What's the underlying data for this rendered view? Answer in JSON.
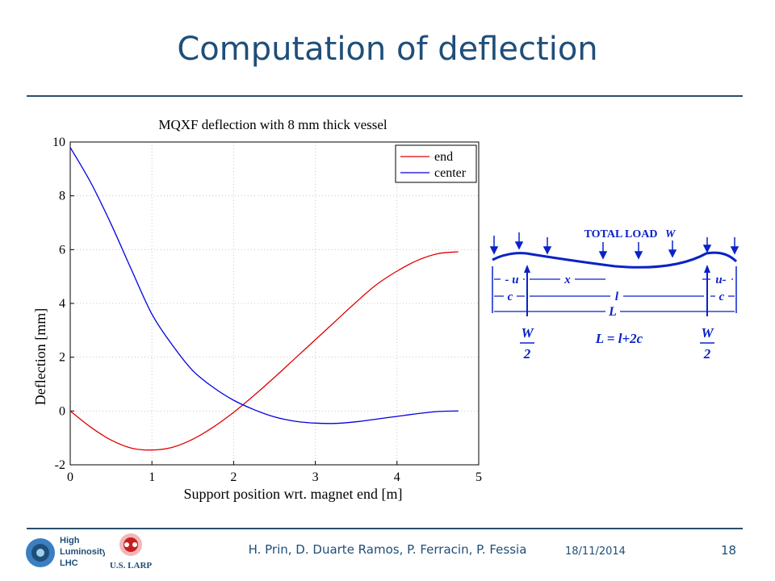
{
  "slide": {
    "title": "Computation of deflection",
    "footer": {
      "authors": "H. Prin, D. Duarte Ramos, P. Ferracin, P. Fessia",
      "date": "18/11/2014",
      "page_number": "18",
      "logo_hl_lines": [
        "High",
        "Luminosity",
        "LHC"
      ],
      "logo_larp": "U.S. LARP"
    }
  },
  "chart_data": {
    "type": "line",
    "title": "MQXF deflection with 8 mm thick vessel",
    "xlabel": "Support position wrt. magnet end [m]",
    "ylabel": "Deflection [mm]",
    "xlim": [
      0,
      5
    ],
    "ylim": [
      -2,
      10
    ],
    "xticks": [
      "0",
      "1",
      "2",
      "3",
      "4",
      "5"
    ],
    "yticks": [
      "-2",
      "0",
      "2",
      "4",
      "6",
      "8",
      "10"
    ],
    "grid": true,
    "legend_position": "top-right",
    "series": [
      {
        "name": "end",
        "color": "#e00000",
        "x": [
          0,
          0.25,
          0.5,
          0.75,
          1.0,
          1.25,
          1.5,
          1.75,
          2.0,
          2.25,
          2.5,
          2.75,
          3.0,
          3.25,
          3.5,
          3.75,
          4.0,
          4.25,
          4.5,
          4.75
        ],
        "values": [
          0,
          -0.6,
          -1.08,
          -1.38,
          -1.45,
          -1.35,
          -1.05,
          -0.6,
          -0.05,
          0.58,
          1.25,
          1.95,
          2.65,
          3.35,
          4.05,
          4.7,
          5.2,
          5.6,
          5.85,
          5.92
        ]
      },
      {
        "name": "center",
        "color": "#0000e0",
        "x": [
          0,
          0.25,
          0.5,
          0.75,
          1.0,
          1.25,
          1.5,
          1.75,
          2.0,
          2.25,
          2.5,
          2.75,
          3.0,
          3.25,
          3.5,
          3.75,
          4.0,
          4.25,
          4.5,
          4.75
        ],
        "values": [
          9.8,
          8.5,
          6.95,
          5.25,
          3.6,
          2.45,
          1.5,
          0.88,
          0.4,
          0.05,
          -0.22,
          -0.38,
          -0.45,
          -0.46,
          -0.4,
          -0.3,
          -0.2,
          -0.1,
          -0.02,
          0
        ]
      }
    ]
  },
  "beam_diagram": {
    "total_load": "TOTAL  LOAD",
    "total_load_sym": "W",
    "u_left": "- u",
    "x_label": "x",
    "u_right": "u-",
    "c_left": "c",
    "l_label": "l",
    "c_right": "c",
    "L_label": "L",
    "W_num": "W",
    "W_den": "2",
    "equation": "L = l+2c"
  }
}
